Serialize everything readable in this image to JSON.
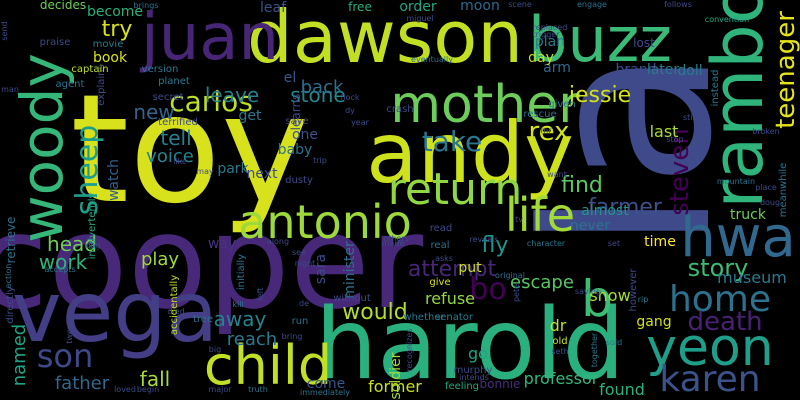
{
  "words": [
    {
      "text": "toy",
      "color": "#d7e11c"
    },
    {
      "text": "la",
      "color": "#3e4a89"
    },
    {
      "text": "cooper",
      "color": "#482878"
    },
    {
      "text": "dawson",
      "color": "#c2df23"
    },
    {
      "text": "juan",
      "color": "#482677"
    },
    {
      "text": "buzz",
      "color": "#3aba76"
    },
    {
      "text": "andy",
      "color": "#cde11d"
    },
    {
      "text": "rambo",
      "color": "#2fb47c"
    },
    {
      "text": "woody",
      "color": "#35b779"
    },
    {
      "text": "harold",
      "color": "#2ab07f"
    },
    {
      "text": "vega",
      "color": "#433e85"
    },
    {
      "text": "mother",
      "color": "#6ccd5a"
    },
    {
      "text": "life",
      "color": "#a2da37"
    },
    {
      "text": "return",
      "color": "#90d743"
    },
    {
      "text": "antonio",
      "color": "#9dd93b"
    },
    {
      "text": "hwa",
      "color": "#31688e"
    },
    {
      "text": "child",
      "color": "#c0df25"
    },
    {
      "text": "yeon",
      "color": "#1f9e89"
    },
    {
      "text": "karen",
      "color": "#3b528b"
    },
    {
      "text": "home",
      "color": "#2c728e"
    },
    {
      "text": "son",
      "color": "#3f4889"
    },
    {
      "text": "carlos",
      "color": "#bddf26"
    },
    {
      "text": "sheep",
      "color": "#1e9d89"
    },
    {
      "text": "bo",
      "color": "#440154"
    },
    {
      "text": "b",
      "color": "#3dbc74"
    },
    {
      "text": "rex",
      "color": "#d2e21b"
    },
    {
      "text": "take",
      "color": "#2b758e"
    },
    {
      "text": "steven",
      "color": "#440154"
    },
    {
      "text": "teenager",
      "color": "#e5e419"
    },
    {
      "text": "death",
      "color": "#482173"
    },
    {
      "text": "story",
      "color": "#3bbb75"
    },
    {
      "text": "find",
      "color": "#5ac864"
    },
    {
      "text": "farmer",
      "color": "#3b528b"
    },
    {
      "text": "jessie",
      "color": "#d5e21a"
    },
    {
      "text": "try",
      "color": "#d8e219"
    },
    {
      "text": "leave",
      "color": "#277f8e"
    },
    {
      "text": "new",
      "color": "#33638d"
    },
    {
      "text": "tell",
      "color": "#26828e"
    },
    {
      "text": "voice",
      "color": "#25848e"
    },
    {
      "text": "stone",
      "color": "#23898e"
    },
    {
      "text": "back",
      "color": "#2d708e"
    },
    {
      "text": "would",
      "color": "#b2dd2d"
    },
    {
      "text": "attempt",
      "color": "#482677"
    },
    {
      "text": "fly",
      "color": "#1f968b"
    },
    {
      "text": "escape",
      "color": "#56c667"
    },
    {
      "text": "named",
      "color": "#20a386"
    },
    {
      "text": "work",
      "color": "#2fb47c"
    },
    {
      "text": "head",
      "color": "#6ece58"
    },
    {
      "text": "play",
      "color": "#9fda3a"
    },
    {
      "text": "away",
      "color": "#26828e"
    },
    {
      "text": "fall",
      "color": "#a5db36"
    },
    {
      "text": "father",
      "color": "#31688e"
    },
    {
      "text": "reach",
      "color": "#2a788e"
    },
    {
      "text": "show",
      "color": "#a8db34"
    },
    {
      "text": "former",
      "color": "#c8e020"
    },
    {
      "text": "found",
      "color": "#2ab07f"
    },
    {
      "text": "professor",
      "color": "#35b779"
    },
    {
      "text": "truck",
      "color": "#6ece58"
    },
    {
      "text": "museum",
      "color": "#2a788e"
    },
    {
      "text": "time",
      "color": "#fde725"
    },
    {
      "text": "last",
      "color": "#a8db34"
    },
    {
      "text": "almost",
      "color": "#1f968b"
    },
    {
      "text": "never",
      "color": "#2c728e"
    },
    {
      "text": "put",
      "color": "#c8e020"
    },
    {
      "text": "refuse",
      "color": "#90d743"
    },
    {
      "text": "park",
      "color": "#2a788e"
    },
    {
      "text": "next",
      "color": "#3e4a89"
    },
    {
      "text": "get",
      "color": "#2a788e"
    },
    {
      "text": "one",
      "color": "#3b528b"
    },
    {
      "text": "baby",
      "color": "#2c728e"
    },
    {
      "text": "watch",
      "color": "#355f8d"
    },
    {
      "text": "way",
      "color": "#46337e"
    },
    {
      "text": "sara",
      "color": "#3e4a89"
    },
    {
      "text": "minister",
      "color": "#2c728e"
    },
    {
      "text": "soldier",
      "color": "#a2da37"
    },
    {
      "text": "dr",
      "color": "#c0df25"
    },
    {
      "text": "go",
      "color": "#20a386"
    },
    {
      "text": "come",
      "color": "#39568c"
    },
    {
      "text": "gang",
      "color": "#d2e21b"
    },
    {
      "text": "doll",
      "color": "#287c8e"
    },
    {
      "text": "brand",
      "color": "#3e4a89"
    },
    {
      "text": "later",
      "color": "#2a788e"
    },
    {
      "text": "lost",
      "color": "#3e4a89"
    },
    {
      "text": "plan",
      "color": "#2a788e"
    },
    {
      "text": "arm",
      "color": "#31688e"
    },
    {
      "text": "day",
      "color": "#c0df25"
    },
    {
      "text": "become",
      "color": "#29af7f"
    },
    {
      "text": "book",
      "color": "#d8e219"
    },
    {
      "text": "free",
      "color": "#29af7f"
    },
    {
      "text": "order",
      "color": "#22a884"
    },
    {
      "text": "moon",
      "color": "#31688e"
    },
    {
      "text": "leaf",
      "color": "#3b528b"
    },
    {
      "text": "decides",
      "color": "#6ece58"
    },
    {
      "text": "praise",
      "color": "#3e4a89"
    },
    {
      "text": "movie",
      "color": "#287c8e"
    },
    {
      "text": "el",
      "color": "#38588c"
    },
    {
      "text": "learns",
      "color": "#3e4a89"
    },
    {
      "text": "bonnie",
      "color": "#472d7b"
    },
    {
      "text": "murphy",
      "color": "#3e4a89"
    },
    {
      "text": "feeling",
      "color": "#22a884"
    },
    {
      "text": "senator",
      "color": "#287c8e"
    },
    {
      "text": "whether",
      "color": "#2a788e"
    },
    {
      "text": "without",
      "color": "#3e4a89"
    },
    {
      "text": "initially",
      "color": "#2c728e"
    },
    {
      "text": "accidentally",
      "color": "#bddf26"
    },
    {
      "text": "retrieve",
      "color": "#2c728e"
    },
    {
      "text": "directly",
      "color": "#3e4a89"
    },
    {
      "text": "inadvertently",
      "color": "#22a884"
    },
    {
      "text": "explains",
      "color": "#3e4a89"
    },
    {
      "text": "agent",
      "color": "#2c728e"
    },
    {
      "text": "captain",
      "color": "#bddf26"
    },
    {
      "text": "version",
      "color": "#2a788e"
    },
    {
      "text": "planet",
      "color": "#2a788e"
    },
    {
      "text": "secret",
      "color": "#3e4a89"
    },
    {
      "text": "terrified",
      "color": "#3e4a89"
    },
    {
      "text": "save",
      "color": "#3e4a89"
    },
    {
      "text": "crash",
      "color": "#3e4a89"
    },
    {
      "text": "rescue",
      "color": "#2c728e"
    },
    {
      "text": "given",
      "color": "#287c8e"
    },
    {
      "text": "however",
      "color": "#3e4a89"
    },
    {
      "text": "instead",
      "color": "#2a788e"
    },
    {
      "text": "meanwhile",
      "color": "#2c728e"
    },
    {
      "text": "mountain",
      "color": "#2c728e"
    },
    {
      "text": "broken",
      "color": "#3e4a89"
    },
    {
      "text": "place",
      "color": "#3e4a89"
    },
    {
      "text": "convention",
      "color": "#22a884"
    },
    {
      "text": "follows",
      "color": "#3e4a89"
    },
    {
      "text": "engage",
      "color": "#2c728e"
    },
    {
      "text": "scene",
      "color": "#3e4a89"
    },
    {
      "text": "replaced",
      "color": "#3e4a89"
    },
    {
      "text": "trigger",
      "color": "#3e4a89"
    },
    {
      "text": "eventually",
      "color": "#2c728e"
    },
    {
      "text": "miguel",
      "color": "#3e4a89"
    },
    {
      "text": "brings",
      "color": "#2c728e"
    },
    {
      "text": "send",
      "color": "#3e4a89"
    },
    {
      "text": "man",
      "color": "#3e4a89"
    },
    {
      "text": "action",
      "color": "#2c728e"
    },
    {
      "text": "accepts",
      "color": "#2a788e"
    },
    {
      "text": "twenty",
      "color": "#3e4a89"
    },
    {
      "text": "loved",
      "color": "#3e4a89"
    },
    {
      "text": "begin",
      "color": "#3e4a89"
    },
    {
      "text": "major",
      "color": "#3e4a89"
    },
    {
      "text": "truth",
      "color": "#2c728e"
    },
    {
      "text": "immediately",
      "color": "#2c728e"
    },
    {
      "text": "recognizes",
      "color": "#3e4a89"
    },
    {
      "text": "intends",
      "color": "#3e4a89"
    },
    {
      "text": "together",
      "color": "#2a788e"
    },
    {
      "text": "seth",
      "color": "#3e4a89"
    },
    {
      "text": "old",
      "color": "#c8e020"
    },
    {
      "text": "sold",
      "color": "#2c728e"
    },
    {
      "text": "saving",
      "color": "#3e4a89"
    },
    {
      "text": "rip",
      "color": "#2a788e"
    },
    {
      "text": "original",
      "color": "#2c728e"
    },
    {
      "text": "pete",
      "color": "#3e4a89"
    },
    {
      "text": "character",
      "color": "#2a788e"
    },
    {
      "text": "set",
      "color": "#3e4a89"
    },
    {
      "text": "real",
      "color": "#2c728e"
    },
    {
      "text": "read",
      "color": "#3e4a89"
    },
    {
      "text": "asks",
      "color": "#3e4a89"
    },
    {
      "text": "give",
      "color": "#d8e219"
    },
    {
      "text": "made",
      "color": "#3e4a89"
    },
    {
      "text": "reveals",
      "color": "#3e4a89"
    },
    {
      "text": "others",
      "color": "#3e4a89"
    },
    {
      "text": "along",
      "color": "#3e4a89"
    },
    {
      "text": "night",
      "color": "#3e4a89"
    },
    {
      "text": "see",
      "color": "#3e4a89"
    },
    {
      "text": "dusty",
      "color": "#3e4a89"
    },
    {
      "text": "trip",
      "color": "#3e4a89"
    },
    {
      "text": "like",
      "color": "#3e4a89"
    },
    {
      "text": "may",
      "color": "#3e4a89"
    },
    {
      "text": "kill",
      "color": "#2c728e"
    },
    {
      "text": "died",
      "color": "#3e4a89"
    },
    {
      "text": "tree",
      "color": "#2c728e"
    },
    {
      "text": "big",
      "color": "#3e4a89"
    },
    {
      "text": "run",
      "color": "#2c728e"
    },
    {
      "text": "bring",
      "color": "#3e4a89"
    },
    {
      "text": "de",
      "color": "#3e4a89"
    },
    {
      "text": "left",
      "color": "#3e4a89"
    },
    {
      "text": "dog",
      "color": "#3e4a89"
    },
    {
      "text": "doug",
      "color": "#3e4a89"
    },
    {
      "text": "stop",
      "color": "#3e4a89"
    },
    {
      "text": "still",
      "color": "#3e4a89"
    },
    {
      "text": "flock",
      "color": "#3e4a89"
    },
    {
      "text": "year",
      "color": "#3e4a89"
    },
    {
      "text": "dy",
      "color": "#3e4a89"
    },
    {
      "text": "want",
      "color": "#3e4a89"
    },
    {
      "text": "tv",
      "color": "#3e4a89"
    },
    {
      "text": "mr",
      "color": "#3e4a89"
    }
  ]
}
